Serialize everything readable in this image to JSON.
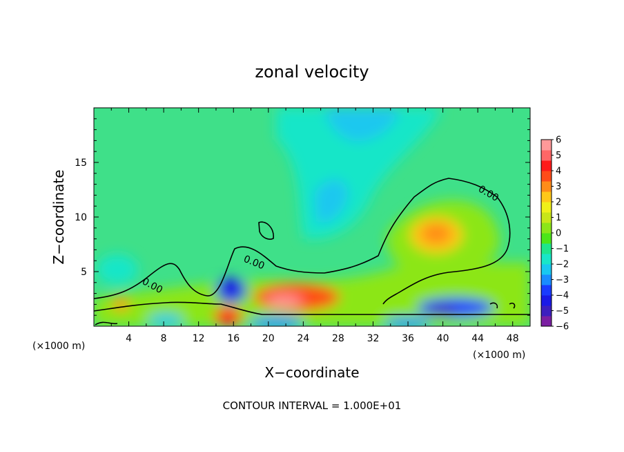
{
  "chart_data": {
    "type": "heatmap",
    "title": "zonal velocity",
    "xlabel": "X−coordinate",
    "ylabel": "Z−coordinate",
    "x_unit": "(×1000 m)",
    "y_unit": "(×1000 m)",
    "xlim": [
      0,
      50
    ],
    "ylim": [
      0,
      20
    ],
    "x_ticks": [
      "4",
      "8",
      "12",
      "16",
      "20",
      "24",
      "28",
      "32",
      "36",
      "40",
      "44",
      "48"
    ],
    "y_ticks": [
      "5",
      "10",
      "15"
    ],
    "colorbar": {
      "ticks": [
        "6",
        "5",
        "4",
        "3",
        "2",
        "1",
        "0",
        "−1",
        "−2",
        "−3",
        "−4",
        "−5",
        "−6"
      ],
      "range": [
        -6,
        6
      ],
      "colors": [
        "#7b1fa2",
        "#3c1fbf",
        "#1a1ae6",
        "#1a3cff",
        "#1a8cff",
        "#19c8f0",
        "#19e6c8",
        "#1fe68c",
        "#4ce619",
        "#8ce619",
        "#c8e619",
        "#f0f019",
        "#ffc819",
        "#ff8c19",
        "#ff4c19",
        "#ff1a1a",
        "#ff6666",
        "#ff9999"
      ]
    },
    "contour_label": "0.00",
    "annotation": "CONTOUR INTERVAL = 1.000E+01",
    "features": [
      {
        "x": 40,
        "z": 8.5,
        "value": 2.8
      },
      {
        "x": 21,
        "z": 2.4,
        "value": 5.0
      },
      {
        "x": 25,
        "z": 2.6,
        "value": 3.5
      },
      {
        "x": 29,
        "z": 18.5,
        "value": -2.8
      },
      {
        "x": 27,
        "z": 11.0,
        "value": -2.2
      },
      {
        "x": 15.5,
        "z": 3.0,
        "value": -4.5
      },
      {
        "x": 39,
        "z": 1.8,
        "value": -4.8
      },
      {
        "x": 16,
        "z": 1.0,
        "value": 4.5
      },
      {
        "x": 3,
        "z": 2.0,
        "value": 2.5
      },
      {
        "x": 3,
        "z": 5.5,
        "value": -1.8
      }
    ]
  }
}
